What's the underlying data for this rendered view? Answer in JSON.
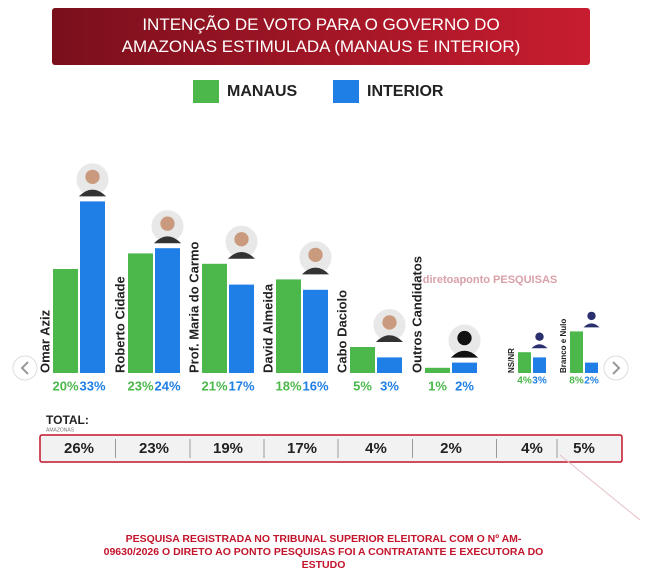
{
  "chart_data": {
    "type": "bar",
    "title": "INTENÇÃO DE VOTO PARA O GOVERNO DO AMAZONAS ESTIMULADA (MANAUS E INTERIOR)",
    "categories": [
      "Omar Aziz",
      "Roberto Cidade",
      "Prof. Maria do Carmo",
      "David Almeida",
      "Cabo Daciolo",
      "Outros Candidatos",
      "NS/NR",
      "Branco e Nulo"
    ],
    "series": [
      {
        "name": "MANAUS",
        "color": "#4cb84c",
        "values": [
          20,
          23,
          21,
          18,
          5,
          1,
          4,
          8
        ],
        "value_labels": [
          "20%",
          "23%",
          "21%",
          "18%",
          "5%",
          "1%",
          "4%",
          "8%"
        ]
      },
      {
        "name": "INTERIOR",
        "color": "#1f7fe6",
        "values": [
          33,
          24,
          17,
          16,
          3,
          2,
          3,
          2
        ],
        "value_labels": [
          "33%",
          "24%",
          "17%",
          "16%",
          "3%",
          "2%",
          "3%",
          "2%"
        ]
      }
    ],
    "total_label": "TOTAL:",
    "total_sublabel": "AMAZONAS",
    "totals": [
      "26%",
      "23%",
      "19%",
      "17%",
      "4%",
      "2%",
      "4%",
      "5%"
    ],
    "watermark": "diretoaponto PESQUISAS",
    "footnote": "PESQUISA REGISTRADA NO TRIBUNAL SUPERIOR ELEITORAL COM O Nº AM-09630/2026 O DIRETO AO PONTO PESQUISAS FOI A CONTRATANTE E EXECUTORA DO ESTUDO"
  }
}
